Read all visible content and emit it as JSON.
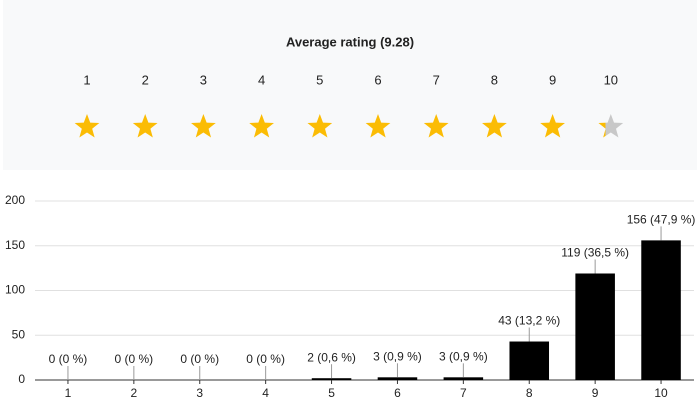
{
  "rating_panel": {
    "title": "Average rating (9.28)",
    "average": 9.28,
    "stars": [
      1,
      2,
      3,
      4,
      5,
      6,
      7,
      8,
      9,
      10
    ],
    "star_color": "#fbbc04",
    "empty_color": "#c8c8c8"
  },
  "chart_data": {
    "type": "bar",
    "categories": [
      "1",
      "2",
      "3",
      "4",
      "5",
      "6",
      "7",
      "8",
      "9",
      "10"
    ],
    "values": [
      0,
      0,
      0,
      0,
      2,
      3,
      3,
      43,
      119,
      156
    ],
    "value_labels": [
      "0 (0 %)",
      "0 (0 %)",
      "0 (0 %)",
      "0 (0 %)",
      "2 (0,6 %)",
      "3 (0,9 %)",
      "3 (0,9 %)",
      "43 (13,2 %)",
      "119 (36,5 %)",
      "156 (47,9 %)"
    ],
    "color": "#000000",
    "ylim": [
      0,
      200
    ],
    "yticks": [
      0,
      50,
      100,
      150,
      200
    ],
    "grid": true
  }
}
